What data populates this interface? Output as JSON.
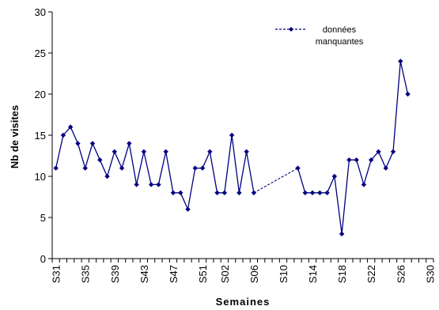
{
  "chart_data": {
    "type": "line",
    "xlabel": "Semaines",
    "ylabel": "Nb de visites",
    "ylim": [
      0,
      30
    ],
    "y_ticks": [
      0,
      5,
      10,
      15,
      20,
      25,
      30
    ],
    "grid": false,
    "x_tick_labels": [
      "S31",
      "S35",
      "S39",
      "S43",
      "S47",
      "S51",
      "S02",
      "S06",
      "S10",
      "S14",
      "S18",
      "S22",
      "S26",
      "S30"
    ],
    "categories": [
      "S31",
      "S32",
      "S33",
      "S34",
      "S35",
      "S36",
      "S37",
      "S38",
      "S39",
      "S40",
      "S41",
      "S42",
      "S43",
      "S44",
      "S45",
      "S46",
      "S47",
      "S48",
      "S49",
      "S50",
      "S51",
      "S52",
      "S01",
      "S02",
      "S03",
      "S04",
      "S05",
      "S06",
      "S07",
      "S08",
      "S09",
      "S10",
      "S11",
      "S12",
      "S13",
      "S14",
      "S15",
      "S16",
      "S17",
      "S18",
      "S19",
      "S20",
      "S21",
      "S22",
      "S23",
      "S24",
      "S25",
      "S26",
      "S27",
      "S28",
      "S29",
      "S30"
    ],
    "series": [
      {
        "color": "#000080",
        "values": [
          11,
          15,
          16,
          14,
          11,
          14,
          12,
          10,
          13,
          11,
          14,
          9,
          13,
          9,
          9,
          13,
          8,
          8,
          6,
          11,
          11,
          13,
          8,
          8,
          15,
          8,
          13,
          8,
          null,
          null,
          null,
          null,
          null,
          11,
          8,
          8,
          8,
          8,
          10,
          3,
          12,
          12,
          9,
          12,
          13,
          11,
          13,
          24,
          20,
          null,
          null,
          null
        ]
      }
    ],
    "missing_segments": [
      {
        "from": "S06",
        "to": "S12",
        "style": "dashed"
      }
    ],
    "legend": {
      "label_line1": "données",
      "label_line2": "manquantes",
      "placement": "top-right"
    }
  }
}
